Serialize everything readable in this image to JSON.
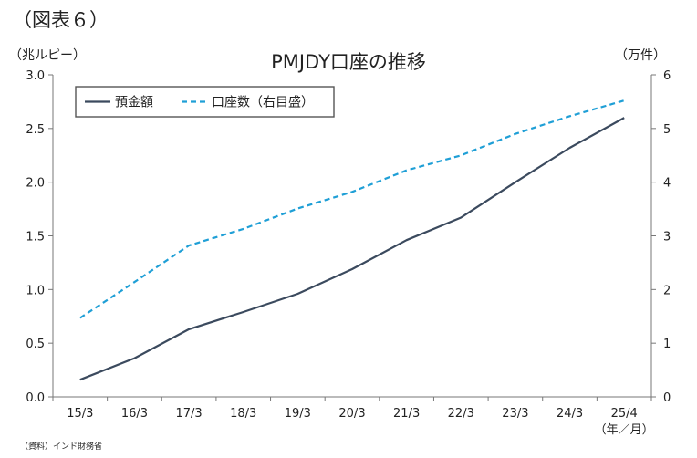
{
  "figure_label": "（図表６）",
  "source": "（資料）インド財務省",
  "chart_data": {
    "type": "line",
    "title": "PMJDY口座の推移",
    "ylabel_left": "（兆ルピー）",
    "ylabel_right": "（万件）",
    "xlabel": "（年／月）",
    "categories": [
      "15/3",
      "16/3",
      "17/3",
      "18/3",
      "19/3",
      "20/3",
      "21/3",
      "22/3",
      "23/3",
      "24/3",
      "25/4"
    ],
    "ylim_left": [
      0,
      3.0
    ],
    "ylim_right": [
      0,
      6
    ],
    "yticks_left": [
      "0.0",
      "0.5",
      "1.0",
      "1.5",
      "2.0",
      "2.5",
      "3.0"
    ],
    "yticks_right": [
      "0",
      "1",
      "2",
      "3",
      "4",
      "5",
      "6"
    ],
    "grid": false,
    "legend_position": "top-left",
    "series": [
      {
        "name": "預金額",
        "axis": "left",
        "style": "solid",
        "color": "#3b4a5e",
        "values": [
          0.16,
          0.36,
          0.63,
          0.79,
          0.96,
          1.19,
          1.46,
          1.67,
          2.0,
          2.32,
          2.6
        ]
      },
      {
        "name": "口座数（右目盛）",
        "axis": "right",
        "style": "dashed",
        "color": "#1f9fd6",
        "values": [
          1.47,
          2.14,
          2.82,
          3.13,
          3.51,
          3.82,
          4.22,
          4.5,
          4.9,
          5.23,
          5.52
        ]
      }
    ]
  }
}
